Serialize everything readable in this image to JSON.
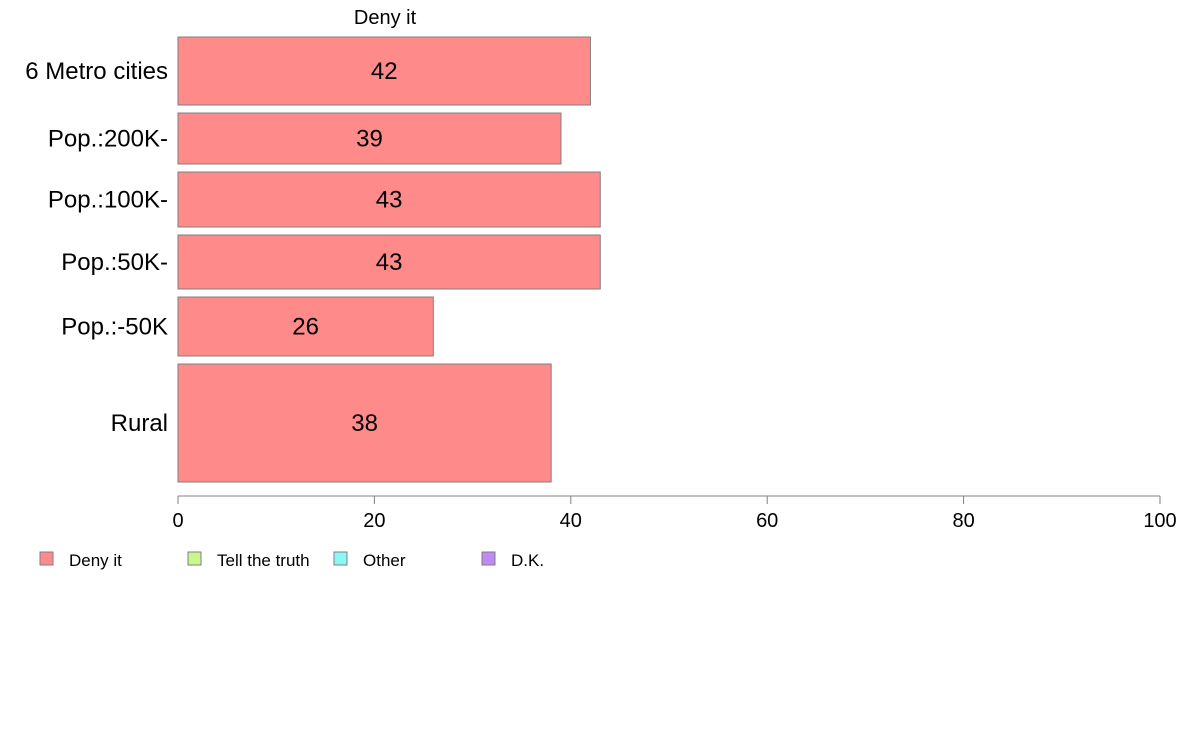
{
  "chart_data": {
    "type": "bar",
    "orientation": "horizontal",
    "title": "Deny it",
    "categories": [
      "6 Metro cities",
      "Pop.:200K-",
      "Pop.:100K-",
      "Pop.:50K-",
      "Pop.:-50K",
      "Rural"
    ],
    "series": [
      {
        "name": "Deny it",
        "values": [
          42,
          39,
          43,
          43,
          26,
          38
        ]
      }
    ],
    "value_labels": [
      "42",
      "39",
      "43",
      "43",
      "26",
      "38"
    ],
    "xlim": [
      0,
      100
    ],
    "x_ticks": [
      0,
      20,
      40,
      60,
      80,
      100
    ],
    "x_tick_labels": [
      "0",
      "20",
      "40",
      "60",
      "80",
      "100"
    ],
    "grid": false,
    "legend_placement": "bottom-left",
    "legend": [
      {
        "label": "Deny it",
        "color": "#ff8a8a"
      },
      {
        "label": "Tell the truth",
        "color": "#c8f78a"
      },
      {
        "label": "Other",
        "color": "#8af7f7"
      },
      {
        "label": "D.K.",
        "color": "#bf8af7"
      }
    ],
    "colors": {
      "bar_fill": "#ff8a8a",
      "bar_stroke": "#7f7f7f",
      "axis": "#808080"
    }
  }
}
